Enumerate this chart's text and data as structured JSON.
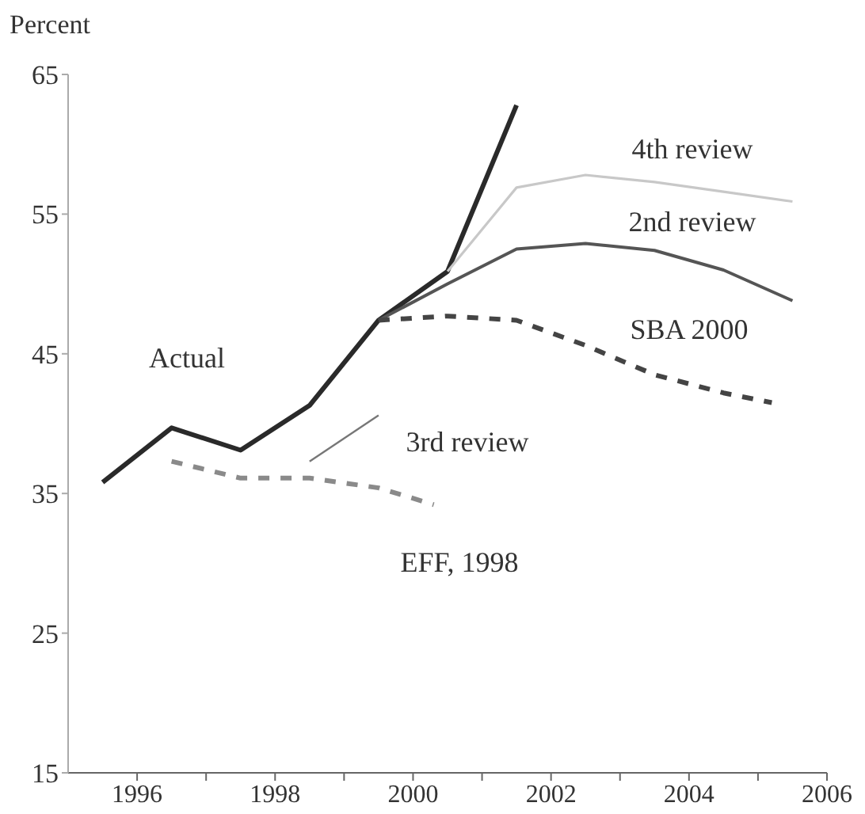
{
  "chart_data": {
    "type": "line",
    "ylabel": "Percent",
    "xlim": [
      1995,
      2006
    ],
    "ylim": [
      15,
      65
    ],
    "xticks": [
      1996,
      {
        "value": 1997,
        "label": null
      },
      1998,
      {
        "value": 1999,
        "label": null
      },
      2000,
      {
        "value": 2001,
        "label": null
      },
      2002,
      {
        "value": 2003,
        "label": null
      },
      2004,
      {
        "value": 2005,
        "label": null
      },
      2006
    ],
    "yticks": [
      15,
      25,
      35,
      45,
      55,
      65
    ],
    "grid": false,
    "legend": false,
    "marker": "none",
    "series": [
      {
        "name": "Actual",
        "color": "#2a2a2a",
        "x": [
          1995.5,
          1996.5,
          1997.5,
          1998.5,
          1999.5,
          2000.5,
          2001.5
        ],
        "values": [
          35.8,
          39.7,
          38.1,
          41.3,
          47.4,
          50.9,
          62.8
        ]
      },
      {
        "name": "4th review",
        "color": "#c8c8c8",
        "x": [
          2000.5,
          2001.5,
          2002.5,
          2003.5,
          2004.5,
          2005.5
        ],
        "values": [
          50.9,
          56.9,
          57.8,
          57.3,
          56.6,
          55.9
        ]
      },
      {
        "name": "2nd review",
        "color": "#555555",
        "x": [
          1999.5,
          2000.5,
          2001.5,
          2002.5,
          2003.5,
          2004.5,
          2005.5
        ],
        "values": [
          47.4,
          50.0,
          52.5,
          52.9,
          52.4,
          51.0,
          48.8
        ]
      },
      {
        "name": "SBA 2000",
        "color": "#444444",
        "line_style": "dashed",
        "x": [
          1999.5,
          2000.5,
          2001.5,
          2002.5,
          2003.5,
          2004.5,
          2005.2
        ],
        "values": [
          47.4,
          47.7,
          47.4,
          45.6,
          43.5,
          42.2,
          41.5
        ]
      },
      {
        "name": "3rd review",
        "color": "#777777",
        "x": [
          1998.5,
          1999.5
        ],
        "values": [
          37.3,
          40.6
        ]
      },
      {
        "name": "EFF, 1998",
        "color": "#8a8a8a",
        "line_style": "dashed",
        "x": [
          1996.5,
          1997.5,
          1998.5,
          1999.5,
          2000.3
        ],
        "values": [
          37.3,
          36.1,
          36.1,
          35.4,
          34.2
        ]
      }
    ]
  }
}
